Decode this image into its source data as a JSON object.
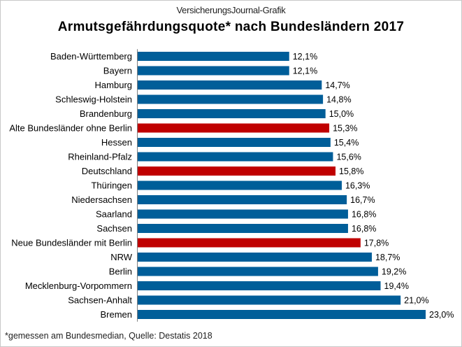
{
  "source_label": "VersicherungsJournal-Grafik",
  "footnote": "*gemessen am Bundesmedian, Quelle: Destatis 2018",
  "colors": {
    "default_bar": "#005e99",
    "highlight_bar": "#c00000"
  },
  "chart_data": {
    "type": "bar",
    "orientation": "horizontal",
    "title": "Armutsgefährdungsquote*  nach Bundesländern  2017",
    "xlabel": "",
    "ylabel": "",
    "grid": false,
    "legend": "none",
    "categories": [
      "Baden-Württemberg",
      "Bayern",
      "Hamburg",
      "Schleswig-Holstein",
      "Brandenburg",
      "Alte Bundesländer ohne Berlin",
      "Hessen",
      "Rheinland-Pfalz",
      "Deutschland",
      "Thüringen",
      "Niedersachsen",
      "Saarland",
      "Sachsen",
      "Neue Bundesländer mit Berlin",
      "NRW",
      "Berlin",
      "Mecklenburg-Vorpommern",
      "Sachsen-Anhalt",
      "Bremen"
    ],
    "values": [
      12.1,
      12.1,
      14.7,
      14.8,
      15.0,
      15.3,
      15.4,
      15.6,
      15.8,
      16.3,
      16.7,
      16.8,
      16.8,
      17.8,
      18.7,
      19.2,
      19.4,
      21.0,
      23.0
    ],
    "value_labels": [
      "12,1%",
      "12,1%",
      "14,7%",
      "14,8%",
      "15,0%",
      "15,3%",
      "15,4%",
      "15,6%",
      "15,8%",
      "16,3%",
      "16,7%",
      "16,8%",
      "16,8%",
      "17,8%",
      "18,7%",
      "19,2%",
      "19,4%",
      "21,0%",
      "23,0%"
    ],
    "highlighted": [
      "Alte Bundesländer ohne Berlin",
      "Deutschland",
      "Neue Bundesländer mit Berlin"
    ],
    "xlim": [
      0,
      23.0
    ]
  }
}
